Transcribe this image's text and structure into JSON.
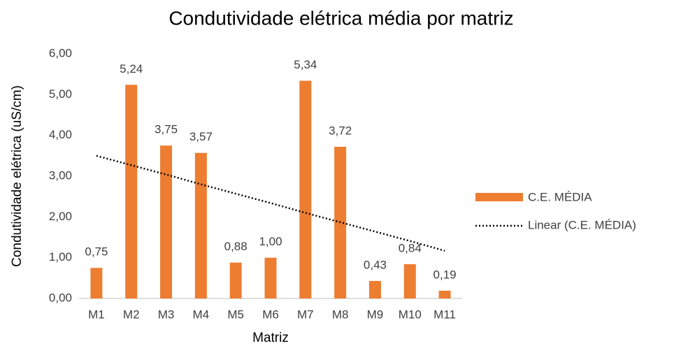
{
  "chart_data": {
    "type": "bar",
    "title": "Condutividade elétrica média por matriz",
    "x_label": "Matriz",
    "y_label": "Condutividade elétrica (uS/cm)",
    "categories": [
      "M1",
      "M2",
      "M3",
      "M4",
      "M5",
      "M6",
      "M7",
      "M8",
      "M9",
      "M10",
      "M11"
    ],
    "series": [
      {
        "name": "C.E. MÉDIA",
        "color": "#ed7d31",
        "values": [
          0.75,
          5.24,
          3.75,
          3.57,
          0.88,
          1.0,
          5.34,
          3.72,
          0.43,
          0.84,
          0.19
        ],
        "value_labels": [
          "0,75",
          "5,24",
          "3,75",
          "3,57",
          "0,88",
          "1,00",
          "5,34",
          "3,72",
          "0,43",
          "0,84",
          "0,19"
        ]
      }
    ],
    "trendline": {
      "name": "Linear (C.E. MÉDIA)",
      "color": "#000000",
      "values": [
        3.5,
        3.27,
        3.04,
        2.8,
        2.57,
        2.34,
        2.1,
        1.87,
        1.64,
        1.41,
        1.17
      ]
    },
    "ylim": [
      0,
      6
    ],
    "yticks": [
      {
        "value": 0,
        "label": "0,00"
      },
      {
        "value": 1,
        "label": "1,00"
      },
      {
        "value": 2,
        "label": "2,00"
      },
      {
        "value": 3,
        "label": "3,00"
      },
      {
        "value": 4,
        "label": "4,00"
      },
      {
        "value": 5,
        "label": "5,00"
      },
      {
        "value": 6,
        "label": "6,00"
      }
    ],
    "grid": false,
    "legend": "right"
  }
}
